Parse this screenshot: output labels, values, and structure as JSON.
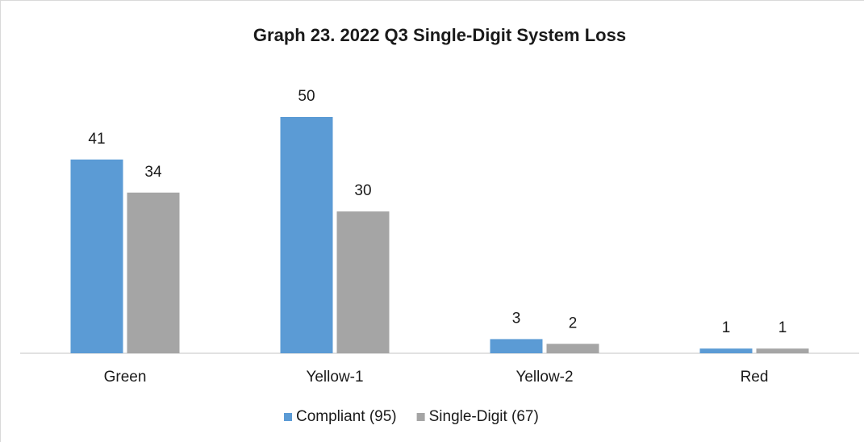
{
  "chart_data": {
    "type": "bar",
    "title": "Graph 23. 2022 Q3 Single-Digit System Loss",
    "categories": [
      "Green",
      "Yellow-1",
      "Yellow-2",
      "Red"
    ],
    "series": [
      {
        "name": "Compliant (95)",
        "color": "#5b9bd5",
        "values": [
          41,
          50,
          3,
          1
        ]
      },
      {
        "name": "Single-Digit (67)",
        "color": "#a5a5a5",
        "values": [
          34,
          30,
          2,
          1
        ]
      }
    ],
    "legend": "bottom"
  }
}
